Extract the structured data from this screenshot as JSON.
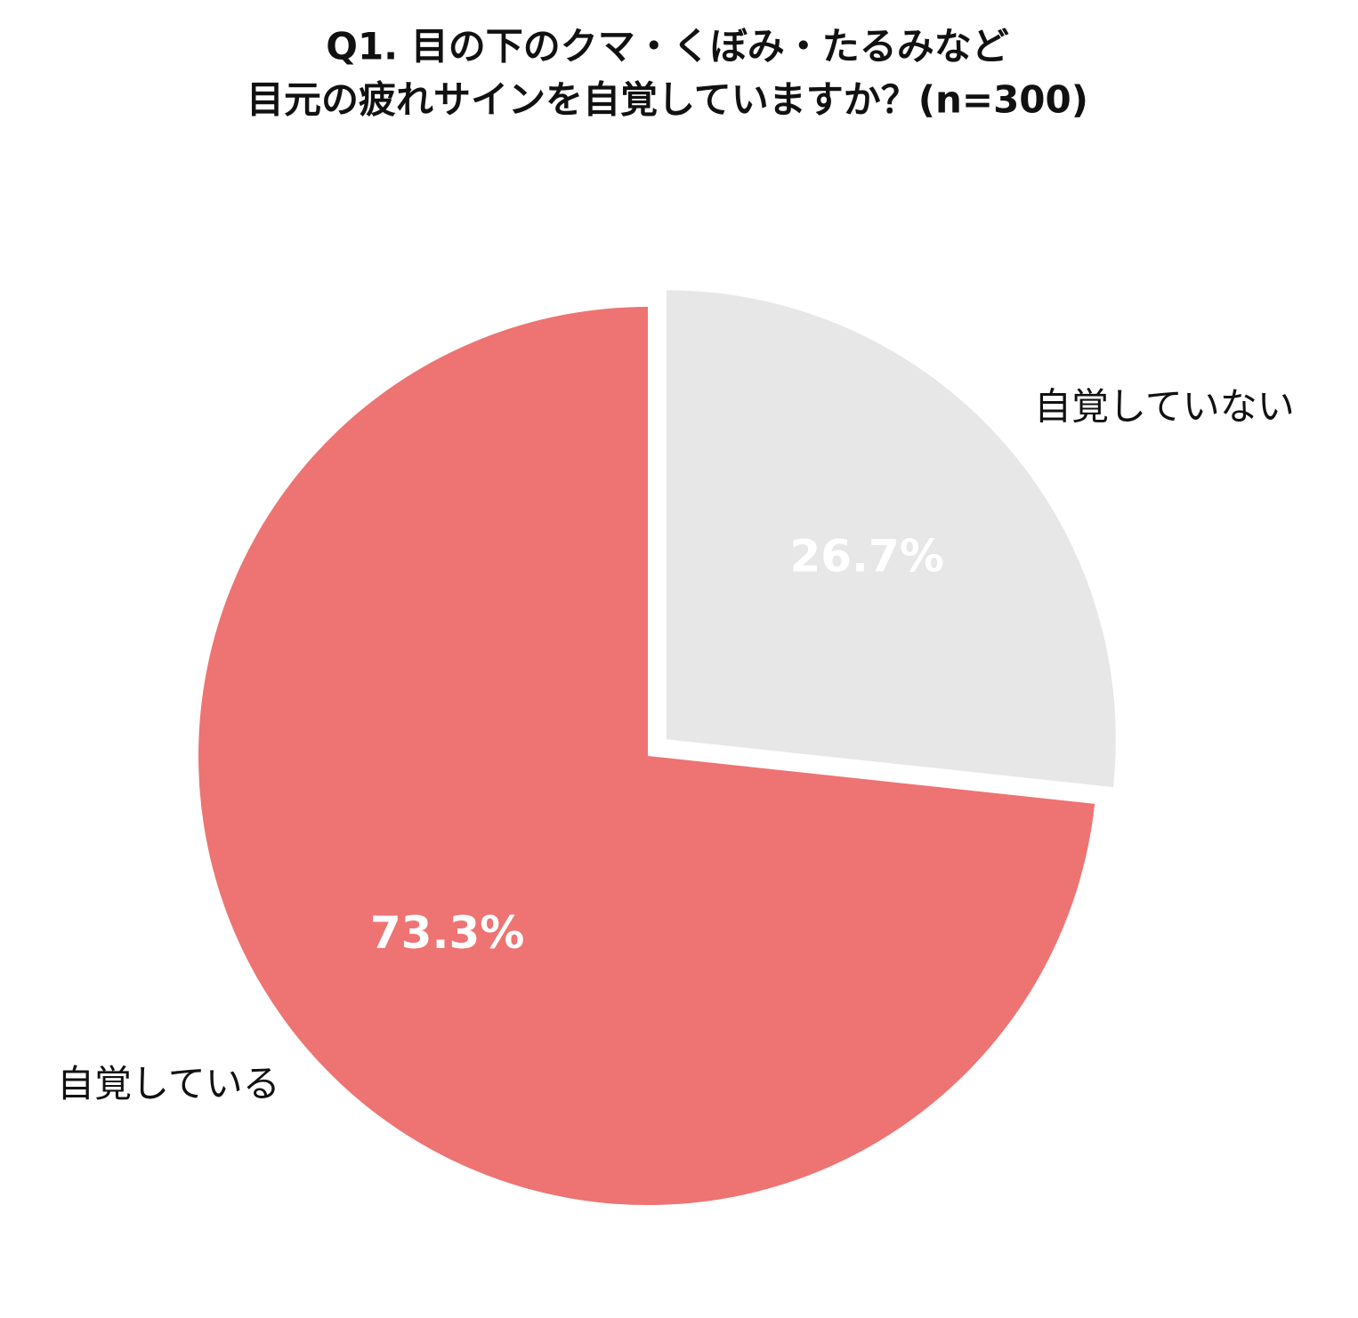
{
  "chart_data": {
    "type": "pie",
    "title": [
      "Q1. 目の下のクマ・くぼみ・たるみなど",
      "目元の疲れサインを自覚していますか？(n=300)"
    ],
    "categories": [
      "自覚している",
      "自覚していない"
    ],
    "values": [
      73.3,
      26.7
    ],
    "value_labels": [
      "73.3%",
      "26.7%"
    ],
    "colors": [
      "#ED7472",
      "#E7E7E7"
    ]
  }
}
